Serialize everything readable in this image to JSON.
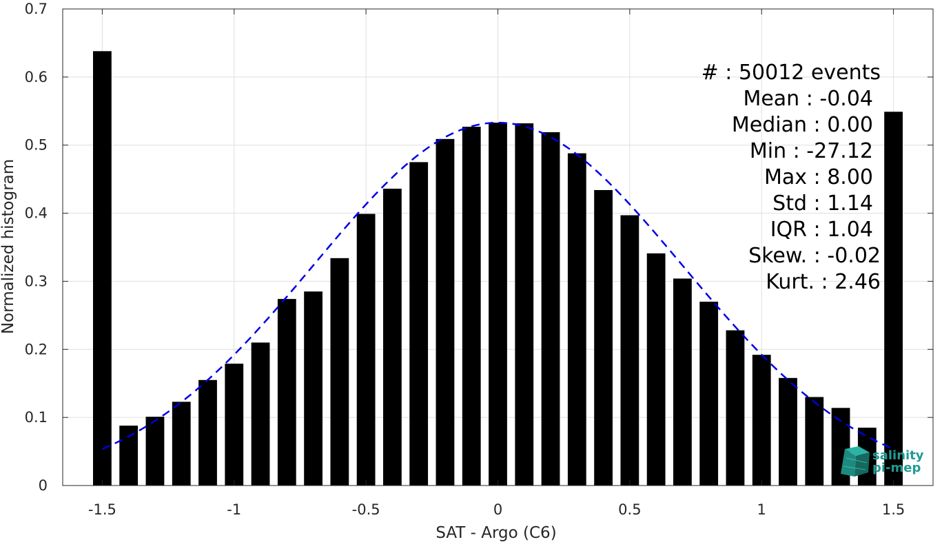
{
  "chart_data": {
    "type": "bar",
    "xlabel": "SAT - Argo (C6)",
    "ylabel": "Normalized histogram",
    "xlim": [
      -1.65,
      1.65
    ],
    "ylim": [
      0,
      0.7
    ],
    "xticks": [
      -1.5,
      -1,
      -0.5,
      0,
      0.5,
      1,
      1.5
    ],
    "xtick_labels": [
      "-1.5",
      "-1",
      "-0.5",
      "0",
      "0.5",
      "1",
      "1.5"
    ],
    "yticks": [
      0,
      0.1,
      0.2,
      0.3,
      0.4,
      0.5,
      0.6,
      0.7
    ],
    "ytick_labels": [
      "0",
      "0.1",
      "0.2",
      "0.3",
      "0.4",
      "0.5",
      "0.6",
      "0.7"
    ],
    "grid": true,
    "bar_width": 0.07,
    "bar_color": "#000000",
    "bars": {
      "x": [
        -1.5,
        -1.4,
        -1.3,
        -1.2,
        -1.1,
        -1.0,
        -0.9,
        -0.8,
        -0.7,
        -0.6,
        -0.5,
        -0.4,
        -0.3,
        -0.2,
        -0.1,
        0.0,
        0.1,
        0.2,
        0.3,
        0.4,
        0.5,
        0.6,
        0.7,
        0.8,
        0.9,
        1.0,
        1.1,
        1.2,
        1.3,
        1.4,
        1.5
      ],
      "values": [
        0.638,
        0.088,
        0.101,
        0.123,
        0.155,
        0.179,
        0.21,
        0.274,
        0.285,
        0.334,
        0.399,
        0.436,
        0.475,
        0.509,
        0.527,
        0.533,
        0.532,
        0.519,
        0.488,
        0.434,
        0.397,
        0.341,
        0.304,
        0.27,
        0.228,
        0.192,
        0.158,
        0.13,
        0.114,
        0.085,
        0.549
      ]
    },
    "fit_curve": {
      "type": "gaussian",
      "style": "dashed",
      "color": "#0000e6",
      "mean": 0.0,
      "sigma": 0.7,
      "peak": 0.533,
      "x_range": [
        -1.5,
        1.5
      ]
    },
    "annotations": [
      "#  : 50012 events",
      "Mean : -0.04",
      "Median : 0.00",
      "Min : -27.12",
      "Max : 8.00",
      "Std : 1.14",
      "IQR : 1.04",
      "Skew. : -0.02",
      "Kurt. : 2.46"
    ]
  },
  "logo": {
    "line1": "salinity",
    "line2": "pi-mep",
    "color": "#1f9c93"
  }
}
